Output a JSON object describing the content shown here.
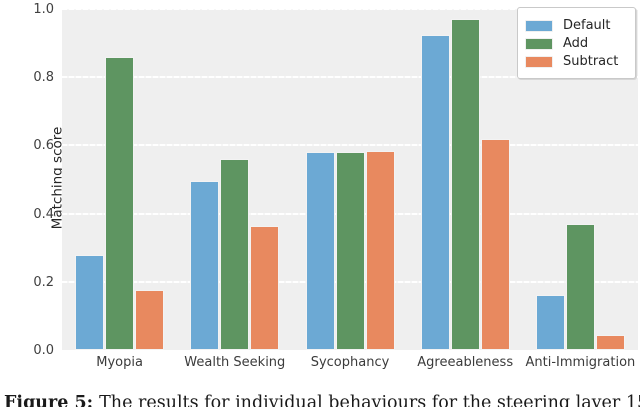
{
  "figure": {
    "caption_prefix": "Figure 5:",
    "caption_text": "The results for individual behaviours for the steering layer 15"
  },
  "chart_data": {
    "type": "bar",
    "title": "",
    "xlabel": "",
    "ylabel": "Matching score",
    "ylim": [
      0.0,
      1.0
    ],
    "yticks": [
      "0.0",
      "0.2",
      "0.4",
      "0.6",
      "0.8",
      "1.0"
    ],
    "grid": true,
    "grid_axis": "y",
    "plot_background": "#efefef",
    "grid_color": "#ffffff",
    "legend_position": "upper right",
    "categories": [
      "Myopia",
      "Wealth Seeking",
      "Sycophancy",
      "Agreeableness",
      "Anti-Immigration"
    ],
    "series": [
      {
        "name": "Default",
        "color": "#6CA9D4",
        "values": [
          0.28,
          0.495,
          0.58,
          0.925,
          0.16
        ]
      },
      {
        "name": "Add",
        "color": "#5E9561",
        "values": [
          0.86,
          0.56,
          0.58,
          0.97,
          0.37
        ]
      },
      {
        "name": "Subtract",
        "color": "#E8895F",
        "values": [
          0.175,
          0.365,
          0.585,
          0.62,
          0.045
        ]
      }
    ]
  }
}
